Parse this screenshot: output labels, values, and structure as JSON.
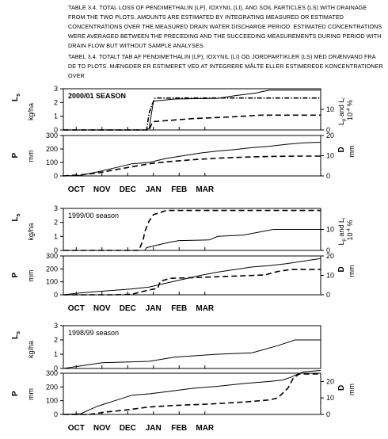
{
  "caption": {
    "en_label": "Table 3.4.",
    "en_text": "Total loss of Pendimethalin (Lp), Ioxynil (Li), and soil particles (Ls) with drainage from the two plots. Amounts are estimated by integrating measured or estimated concentrations over the measured drain water discharge period. Estimated concentrations were averaged between the preceding and the succeeding measurements during period with drain flow but without sample analyses.",
    "da_label": "Tabel 3.4.",
    "da_text": "totalt tab af Pendimethalin (Lp), Ioxynil (Li) og jordpartikler (Ls) med drænvand fra de to plots. Mængder er estimeret ved at integrere målte eller estimerede koncentrationer over"
  },
  "labels": {
    "ls": "L",
    "ls_sub": "s",
    "kgha": "kg/ha",
    "p": "P",
    "mm": "mm",
    "lp_li": "L",
    "lp_li_sub1": "p",
    "lp_li_mid": " and L",
    "lp_li_sub2": "i",
    "pct": "10",
    "pct_sup": "-4",
    "pct_unit": " %",
    "d": "D"
  },
  "months": [
    "OCT",
    "NOV",
    "DEC",
    "JAN",
    "FEB",
    "MAR"
  ],
  "chart_data": [
    {
      "type": "line",
      "title": "2000/01 SEASON",
      "top": {
        "left_ticks": [
          0,
          1,
          2,
          3
        ],
        "right_ticks": [
          0,
          10
        ],
        "left_range": [
          0,
          3
        ],
        "right_range": [
          0,
          20
        ],
        "series": [
          {
            "axis": "left",
            "style": "solid",
            "x": [
              0,
              95,
              100,
              105,
              130,
              180,
              200,
              225,
              240,
              300
            ],
            "y": [
              0,
              0,
              0.1,
              2.1,
              2.25,
              2.3,
              2.5,
              2.7,
              2.9,
              2.9
            ]
          },
          {
            "axis": "right",
            "style": "dashdot",
            "x": [
              0,
              97,
              100,
              103,
              107,
              300
            ],
            "y": [
              0,
              0,
              8,
              12,
              15.5,
              15.5
            ]
          },
          {
            "axis": "right",
            "style": "dashed",
            "x": [
              0,
              100,
              104,
              150,
              195,
              230,
              300
            ],
            "y": [
              0,
              0,
              4,
              5.5,
              6.3,
              7.2,
              7.2
            ]
          }
        ]
      },
      "bottom": {
        "left_ticks": [
          0,
          100,
          200,
          300
        ],
        "right_ticks": [
          0,
          10,
          20
        ],
        "left_range": [
          0,
          300
        ],
        "right_range": [
          0,
          20
        ],
        "series": [
          {
            "axis": "left",
            "style": "solid",
            "x": [
              0,
              20,
              40,
              60,
              80,
              100,
              120,
              140,
              160,
              180,
              200,
              220,
              240,
              260,
              280,
              300
            ],
            "y": [
              0,
              5,
              30,
              60,
              90,
              100,
              130,
              150,
              170,
              185,
              195,
              210,
              220,
              235,
              245,
              250
            ]
          },
          {
            "axis": "right",
            "style": "dashed",
            "x": [
              0,
              20,
              40,
              60,
              80,
              100,
              120,
              150,
              180,
              210,
              240,
              270,
              300
            ],
            "y": [
              0,
              0.5,
              1.5,
              3,
              4.5,
              6,
              7,
              8,
              8.8,
              9.3,
              9.6,
              9.8,
              9.8
            ]
          }
        ]
      }
    },
    {
      "type": "line",
      "title": "1999/00 season",
      "top": {
        "left_ticks": [
          0,
          1,
          2,
          3
        ],
        "right_ticks": [
          0,
          10
        ],
        "left_range": [
          0,
          3
        ],
        "right_range": [
          0,
          20
        ],
        "series": [
          {
            "axis": "left",
            "style": "solid",
            "x": [
              0,
              80,
              95,
              97,
              125,
              135,
              170,
              180,
              210,
              245,
              300
            ],
            "y": [
              0,
              0,
              0,
              0.2,
              0.6,
              0.7,
              0.75,
              1.0,
              1.1,
              1.5,
              1.5
            ]
          },
          {
            "axis": "right",
            "style": "dashed",
            "x": [
              0,
              88,
              90,
              93,
              95,
              100,
              105,
              120,
              300
            ],
            "y": [
              0,
              0,
              2,
              5,
              9,
              14,
              17,
              19,
              19
            ]
          }
        ]
      },
      "bottom": {
        "left_ticks": [
          0,
          100,
          200,
          300
        ],
        "right_ticks": [
          0,
          10,
          20
        ],
        "left_range": [
          0,
          300
        ],
        "right_range": [
          0,
          20
        ],
        "series": [
          {
            "axis": "left",
            "style": "solid",
            "x": [
              0,
              20,
              40,
              60,
              80,
              100,
              120,
              140,
              160,
              180,
              200,
              220,
              240,
              260,
              280,
              300
            ],
            "y": [
              0,
              15,
              25,
              35,
              45,
              60,
              90,
              120,
              150,
              175,
              195,
              215,
              225,
              240,
              260,
              280
            ]
          },
          {
            "axis": "right",
            "style": "dashed",
            "x": [
              0,
              60,
              80,
              100,
              110,
              113,
              125,
              150,
              180,
              210,
              235,
              250,
              265,
              300
            ],
            "y": [
              0,
              0,
              0.3,
              2.5,
              3.3,
              7,
              8.5,
              8.8,
              9.3,
              9.8,
              10.2,
              12,
              13,
              13
            ]
          }
        ]
      }
    },
    {
      "type": "line",
      "title": "1998/99 season",
      "top": {
        "left_ticks": [
          0,
          1,
          2,
          3
        ],
        "right_ticks": [],
        "left_range": [
          0,
          3
        ],
        "right_range": [
          0,
          20
        ],
        "series": [
          {
            "axis": "left",
            "style": "solid",
            "x": [
              0,
              45,
              100,
              130,
              180,
              220,
              250,
              270,
              300
            ],
            "y": [
              0,
              0.4,
              0.5,
              0.8,
              1.0,
              1.1,
              1.6,
              2.0,
              2.0
            ]
          }
        ]
      },
      "bottom": {
        "left_ticks": [
          0,
          100,
          200,
          300
        ],
        "right_ticks": [
          0,
          10,
          20
        ],
        "left_range": [
          0,
          300
        ],
        "right_range": [
          0,
          25
        ],
        "series": [
          {
            "axis": "left",
            "style": "solid",
            "x": [
              0,
              20,
              40,
              60,
              80,
              100,
              120,
              150,
              180,
              210,
              240,
              255,
              265,
              270,
              280,
              300
            ],
            "y": [
              0,
              5,
              60,
              100,
              140,
              150,
              165,
              190,
              205,
              225,
              240,
              250,
              270,
              285,
              310,
              320
            ]
          },
          {
            "axis": "right",
            "style": "dashed",
            "x": [
              0,
              30,
              50,
              70,
              100,
              130,
              170,
              210,
              240,
              250,
              262,
              268,
              275,
              300
            ],
            "y": [
              0,
              0,
              1.5,
              2.5,
              4.5,
              5.5,
              6.3,
              7.5,
              8.8,
              10,
              16,
              22,
              24.5,
              24.5
            ]
          }
        ]
      }
    }
  ]
}
